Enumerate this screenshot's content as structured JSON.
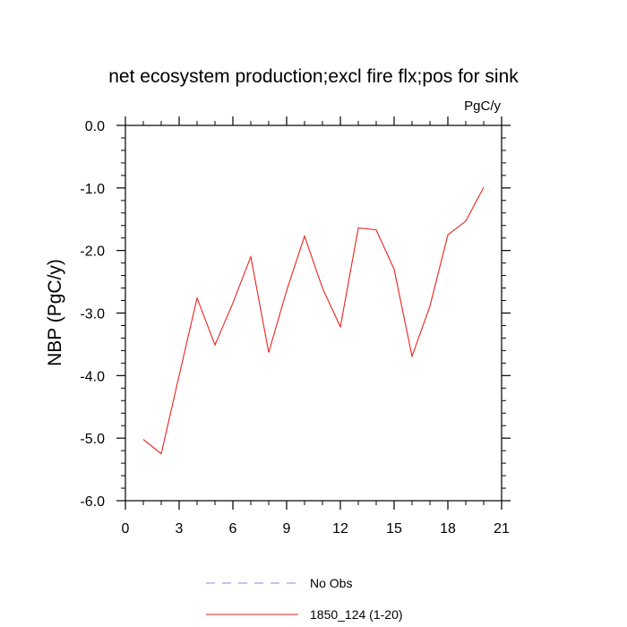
{
  "chart_data": {
    "type": "line",
    "title": "net ecosystem production;excl fire flx;pos for sink",
    "units": "PgC/y",
    "ylabel": "NBP  (PgC/y)",
    "xlabel": "",
    "xlim": [
      0,
      21
    ],
    "ylim": [
      -6.0,
      0.0
    ],
    "xticks": [
      0,
      3,
      6,
      9,
      12,
      15,
      18,
      21
    ],
    "xtick_labels": [
      "0",
      "3",
      "6",
      "9",
      "12",
      "15",
      "18",
      "21"
    ],
    "yticks": [
      0.0,
      -1.0,
      -2.0,
      -3.0,
      -4.0,
      -5.0,
      -6.0
    ],
    "ytick_labels": [
      "0.0",
      "-1.0",
      "-2.0",
      "-3.0",
      "-4.0",
      "-5.0",
      "-6.0"
    ],
    "grid": false,
    "legend_position": "bottom-center",
    "series": [
      {
        "name": "1850_124 (1-20)",
        "color": "#e8231f",
        "style": "solid",
        "x": [
          1,
          2,
          3,
          4,
          5,
          6,
          7,
          8,
          9,
          10,
          11,
          12,
          13,
          14,
          15,
          16,
          17,
          18,
          19,
          20
        ],
        "y": [
          -5.02,
          -5.25,
          -4.0,
          -2.76,
          -3.51,
          -2.84,
          -2.1,
          -3.63,
          -2.64,
          -1.77,
          -2.6,
          -3.22,
          -1.64,
          -1.67,
          -2.3,
          -3.69,
          -2.89,
          -1.75,
          -1.53,
          -0.99
        ]
      }
    ],
    "legend": [
      {
        "label": "No Obs",
        "color": "#8888ee",
        "style": "dashed"
      },
      {
        "label": "1850_124 (1-20)",
        "color": "#e8231f",
        "style": "solid"
      }
    ]
  }
}
